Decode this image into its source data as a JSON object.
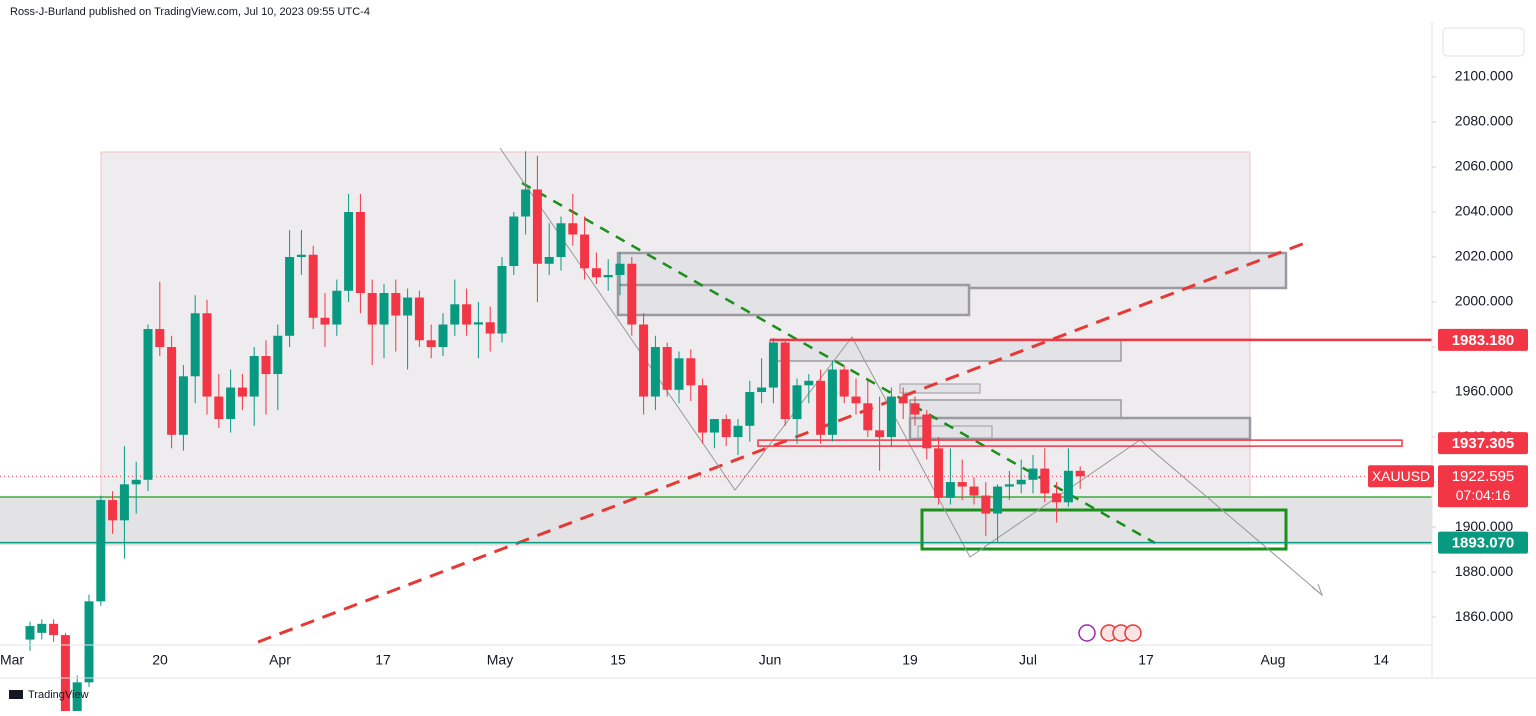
{
  "header": {
    "publisher": "Ross-J-Burland published on TradingView.com, Jul 10, 2023 09:55 UTC-4"
  },
  "footer": {
    "brand": "TradingView"
  },
  "chart_data": {
    "type": "candlestick",
    "symbol": "XAUUSD",
    "up_color": "#089981",
    "down_color": "#f23645",
    "candles": {
      "open": [
        1850,
        1853,
        1857,
        1852,
        1813,
        1831,
        1867,
        1912,
        1903,
        1919,
        1921,
        1988,
        1980,
        1941,
        1967,
        1995,
        1958,
        1948,
        1962,
        1958,
        1976,
        1968,
        1985,
        2020,
        2021,
        1993,
        1990,
        2005,
        2040,
        2004,
        1990,
        2004,
        1994,
        2002,
        1983,
        1980,
        1990,
        1999,
        1990,
        1991,
        1986,
        2016,
        2038,
        2050,
        2017,
        2020,
        2035,
        2030,
        2015,
        2011,
        2012,
        2017,
        1990,
        1958,
        1980,
        1961,
        1975,
        1963,
        1942,
        1948,
        1940,
        1945,
        1960,
        1962,
        1982,
        1948,
        1963,
        1965,
        1941,
        1970,
        1958,
        1955,
        1943,
        1940,
        1958,
        1955,
        1950,
        1935,
        1913,
        1920,
        1918,
        1914,
        1906,
        1918,
        1919,
        1921,
        1926,
        1915,
        1911,
        1925
      ],
      "high": [
        1858,
        1859,
        1859,
        1853,
        1834,
        1870,
        1914,
        1916,
        1936,
        1929,
        1990,
        2009,
        1985,
        1972,
        2003,
        2001,
        1968,
        1970,
        1968,
        1980,
        1983,
        1990,
        2032,
        2032,
        2025,
        2004,
        2010,
        2048,
        2048,
        2010,
        2008,
        2010,
        2006,
        2005,
        1990,
        1995,
        2010,
        2006,
        2000,
        1998,
        2020,
        2040,
        2067,
        2065,
        2035,
        2038,
        2048,
        2038,
        2022,
        2019,
        2022,
        2020,
        1995,
        1985,
        1982,
        1978,
        1979,
        1966,
        1948,
        1950,
        1948,
        1965,
        1975,
        1984,
        1983,
        1966,
        1968,
        1970,
        1974,
        1972,
        1966,
        1965,
        1958,
        1962,
        1962,
        1958,
        1952,
        1940,
        1935,
        1930,
        1922,
        1920,
        1919,
        1925,
        1930,
        1932,
        1935,
        1920,
        1935,
        1927
      ],
      "low": [
        1845,
        1850,
        1849,
        1810,
        1809,
        1829,
        1865,
        1897,
        1886,
        1906,
        1916,
        1976,
        1935,
        1934,
        1955,
        1950,
        1944,
        1942,
        1952,
        1945,
        1950,
        1952,
        1980,
        2012,
        1988,
        1980,
        1985,
        2000,
        1995,
        1972,
        1975,
        1978,
        1970,
        1980,
        1975,
        1976,
        1985,
        1985,
        1975,
        1978,
        1982,
        2012,
        2030,
        2000,
        2012,
        2014,
        2025,
        2010,
        2008,
        2005,
        2003,
        1985,
        1950,
        1952,
        1958,
        1955,
        1956,
        1937,
        1935,
        1936,
        1932,
        1938,
        1955,
        1955,
        1945,
        1937,
        1955,
        1937,
        1938,
        1955,
        1950,
        1940,
        1925,
        1936,
        1948,
        1945,
        1930,
        1910,
        1910,
        1912,
        1910,
        1896,
        1893,
        1912,
        1915,
        1915,
        1911,
        1902,
        1909,
        1917
      ],
      "close": [
        1856,
        1857,
        1852,
        1813,
        1831,
        1867,
        1912,
        1903,
        1919,
        1921,
        1988,
        1980,
        1941,
        1967,
        1995,
        1958,
        1948,
        1962,
        1958,
        1976,
        1968,
        1985,
        2020,
        2021,
        1993,
        1990,
        2005,
        2040,
        2004,
        1990,
        2004,
        1994,
        2002,
        1983,
        1980,
        1990,
        1999,
        1990,
        1991,
        1986,
        2016,
        2038,
        2050,
        2017,
        2020,
        2035,
        2030,
        2015,
        2011,
        2012,
        2017,
        1990,
        1958,
        1980,
        1961,
        1975,
        1963,
        1942,
        1948,
        1940,
        1945,
        1960,
        1962,
        1982,
        1948,
        1963,
        1965,
        1941,
        1970,
        1958,
        1955,
        1943,
        1940,
        1958,
        1955,
        1950,
        1935,
        1913,
        1920,
        1918,
        1914,
        1906,
        1918,
        1919,
        1921,
        1926,
        1915,
        1911,
        1925,
        1922.595
      ]
    },
    "ylim": [
      1847.6,
      2134.2
    ],
    "yticks": [
      {
        "value": 1860,
        "label": "1860.000"
      },
      {
        "value": 1880,
        "label": "1880.000"
      },
      {
        "value": 1900,
        "label": "1900.000"
      },
      {
        "value": 1920,
        "label": "1920.000"
      },
      {
        "value": 1940,
        "label": "1940.000"
      },
      {
        "value": 1960,
        "label": "1960.000"
      },
      {
        "value": 1980,
        "label": "1980.000"
      },
      {
        "value": 2000,
        "label": "2000.000"
      },
      {
        "value": 2020,
        "label": "2020.000"
      },
      {
        "value": 2040,
        "label": "2040.000"
      },
      {
        "value": 2060,
        "label": "2060.000"
      },
      {
        "value": 2080,
        "label": "2080.000"
      },
      {
        "value": 2100,
        "label": "2100.000"
      }
    ],
    "x_labels": [
      "Mar",
      "20",
      "Apr",
      "17",
      "May",
      "15",
      "Jun",
      "19",
      "Jul",
      "17",
      "Aug",
      "14"
    ],
    "price_levels": [
      {
        "value": 1983.18,
        "label": "1983.180",
        "color": "#f23645"
      },
      {
        "value": 1937.305,
        "label": "1937.305",
        "color": "#f23645"
      },
      {
        "value": 1893.07,
        "label": "1893.070",
        "color": "#089981"
      }
    ],
    "last_price": {
      "value": 1922.595,
      "label": "1922.595",
      "countdown": "07:04:16"
    }
  }
}
